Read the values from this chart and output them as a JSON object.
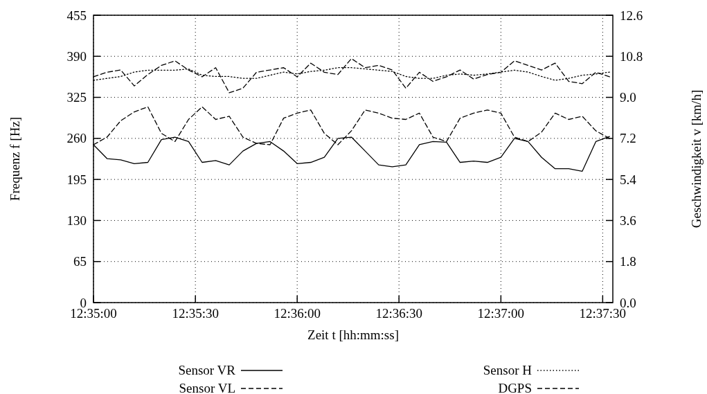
{
  "chart_data": {
    "type": "line",
    "xlabel": "Zeit t [hh:mm:ss]",
    "ylabel": "Frequenz f [Hz]",
    "y2label": "Geschwindigkeit v [km/h]",
    "x": [
      12.58333,
      12.58444,
      12.58556,
      12.58667,
      12.58778,
      12.58889,
      12.59,
      12.59111,
      12.59222,
      12.59333,
      12.59444,
      12.59556,
      12.59667,
      12.59778,
      12.59889,
      12.6,
      12.60111,
      12.60222,
      12.60333,
      12.60444,
      12.60556,
      12.60667,
      12.60778,
      12.60889,
      12.61,
      12.61111,
      12.61222,
      12.61333,
      12.61444,
      12.61556,
      12.61667,
      12.61778,
      12.61889,
      12.62,
      12.62111,
      12.62222,
      12.62333,
      12.62444,
      12.62556
    ],
    "xlim": [
      12.58333,
      12.62583
    ],
    "xticks": [
      {
        "value": 12.58333,
        "label": "12:35:00"
      },
      {
        "value": 12.59167,
        "label": "12:35:30"
      },
      {
        "value": 12.6,
        "label": "12:36:00"
      },
      {
        "value": 12.60833,
        "label": "12:36:30"
      },
      {
        "value": 12.61667,
        "label": "12:37:00"
      },
      {
        "value": 12.625,
        "label": "12:37:30"
      }
    ],
    "ylim": [
      0,
      455
    ],
    "yticks": [
      0,
      65,
      130,
      195,
      260,
      325,
      390,
      455
    ],
    "y2lim": [
      0,
      12.6
    ],
    "y2ticks": [
      {
        "value": 0,
        "label": "0.0"
      },
      1.8,
      3.6,
      5.4,
      7.2,
      {
        "value": 9,
        "label": "9.0"
      },
      10.8,
      12.6
    ],
    "grid": true,
    "legend": "bottom",
    "series": [
      {
        "name": "Sensor VR",
        "color": "#000000",
        "line_style": "solid",
        "values": [
          250,
          228,
          226,
          220,
          222,
          258,
          262,
          255,
          222,
          225,
          218,
          240,
          252,
          255,
          240,
          220,
          222,
          230,
          260,
          262,
          240,
          218,
          215,
          218,
          250,
          255,
          254,
          222,
          224,
          222,
          230,
          260,
          255,
          230,
          212,
          212,
          208,
          255,
          263
        ]
      },
      {
        "name": "Sensor VL",
        "color": "#000000",
        "line_style": "dashed",
        "values": [
          250,
          262,
          288,
          302,
          310,
          268,
          255,
          290,
          310,
          290,
          295,
          262,
          252,
          250,
          292,
          300,
          305,
          268,
          250,
          272,
          305,
          300,
          292,
          290,
          300,
          262,
          255,
          292,
          300,
          305,
          300,
          262,
          255,
          270,
          300,
          290,
          295,
          272,
          260
        ]
      },
      {
        "name": "Sensor H",
        "color": "#000000",
        "line_style": "dotted",
        "values": [
          352,
          355,
          358,
          365,
          368,
          368,
          368,
          370,
          360,
          358,
          358,
          355,
          355,
          360,
          365,
          362,
          366,
          368,
          372,
          372,
          370,
          368,
          366,
          358,
          355,
          355,
          360,
          362,
          360,
          362,
          365,
          368,
          365,
          358,
          352,
          355,
          360,
          362,
          365
        ]
      },
      {
        "name": "DGPS",
        "color": "#000000",
        "line_style": "dashed",
        "axis": "y2",
        "values": [
          9.9,
          10.1,
          10.2,
          9.5,
          10.0,
          10.4,
          10.6,
          10.2,
          9.9,
          10.3,
          9.2,
          9.4,
          10.1,
          10.2,
          10.3,
          9.9,
          10.5,
          10.1,
          10.0,
          10.7,
          10.3,
          10.4,
          10.2,
          9.4,
          10.1,
          9.7,
          9.9,
          10.2,
          9.8,
          10.0,
          10.1,
          10.6,
          10.4,
          10.2,
          10.5,
          9.7,
          9.6,
          10.1,
          9.9
        ]
      }
    ]
  }
}
